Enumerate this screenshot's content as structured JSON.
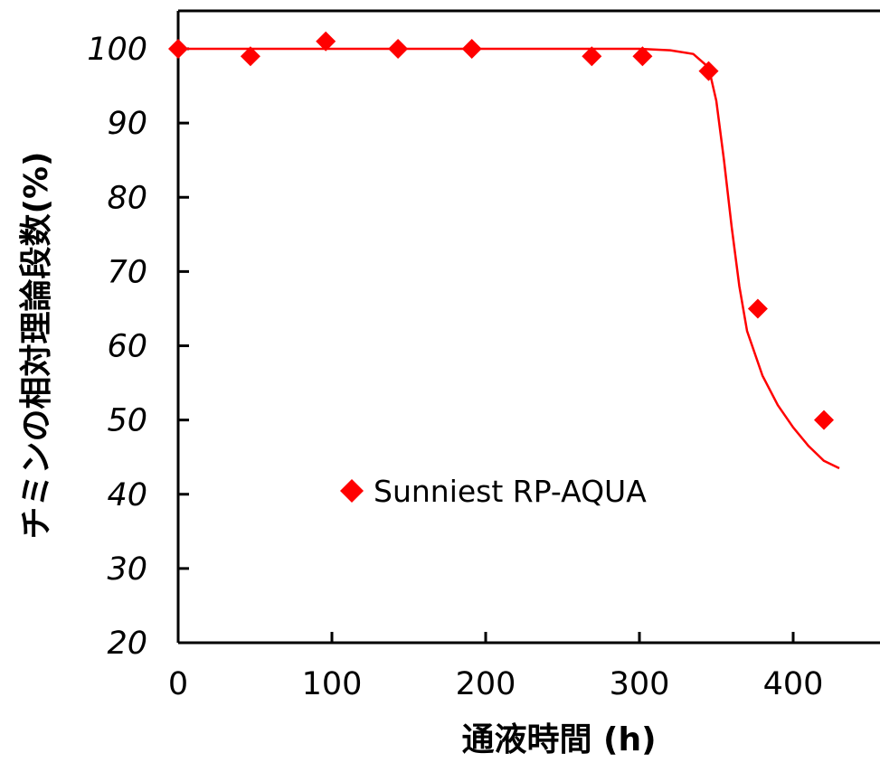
{
  "chart_data": {
    "type": "scatter",
    "title": "",
    "xlabel": "通液時間 (h)",
    "ylabel": "チミンの相対理論段数(%)",
    "xlim": [
      0,
      450
    ],
    "ylim": [
      20,
      105
    ],
    "x_ticks": [
      "0",
      "100",
      "200",
      "300",
      "400"
    ],
    "y_ticks": [
      "20",
      "30",
      "40",
      "50",
      "60",
      "70",
      "80",
      "90",
      "100"
    ],
    "grid": false,
    "legend_position": "center-left",
    "series": [
      {
        "name": "Sunniest RP-AQUA",
        "marker": "diamond",
        "color": "#ff0000",
        "x": [
          0,
          47,
          96,
          143,
          191,
          269,
          302,
          345,
          377,
          420
        ],
        "y": [
          100,
          99,
          101,
          100,
          100,
          99,
          99,
          97,
          65,
          50
        ]
      }
    ],
    "trend_line": {
      "color": "#ff0000",
      "x": [
        0,
        100,
        200,
        300,
        320,
        335,
        345,
        350,
        355,
        360,
        365,
        370,
        380,
        390,
        400,
        410,
        420,
        430
      ],
      "y": [
        100,
        100,
        100,
        100,
        99.8,
        99.3,
        97.5,
        93,
        85,
        76,
        68,
        62,
        56,
        52,
        49,
        46.5,
        44.5,
        43.5
      ]
    }
  }
}
